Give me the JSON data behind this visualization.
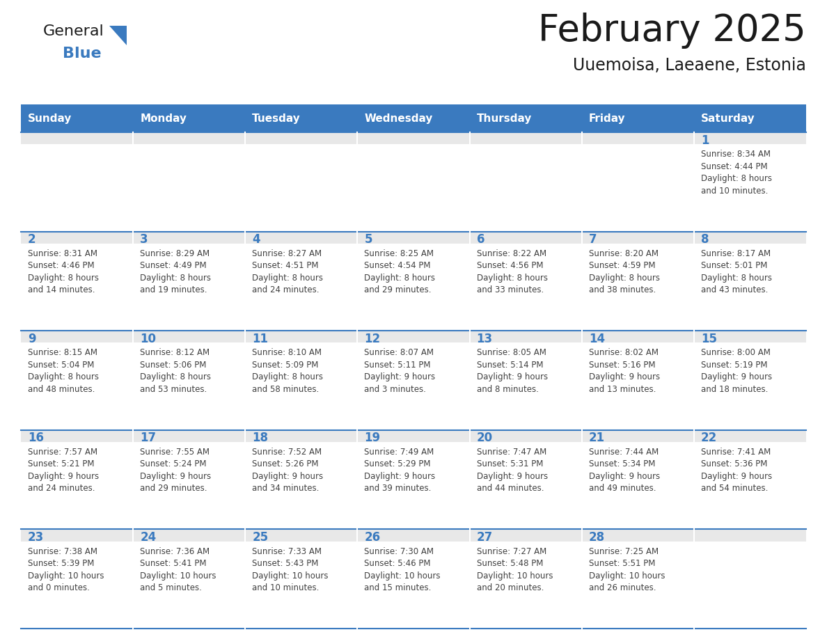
{
  "title": "February 2025",
  "subtitle": "Uuemoisa, Laeaene, Estonia",
  "header_color": "#3a7abf",
  "header_text_color": "#ffffff",
  "cell_bg_top_color": "#e8e8e8",
  "cell_bg_color": "#ffffff",
  "cell_border_color": "#3a7abf",
  "day_number_color": "#3a7abf",
  "text_color": "#404040",
  "days_of_week": [
    "Sunday",
    "Monday",
    "Tuesday",
    "Wednesday",
    "Thursday",
    "Friday",
    "Saturday"
  ],
  "weeks": [
    [
      {
        "day": null,
        "info": null
      },
      {
        "day": null,
        "info": null
      },
      {
        "day": null,
        "info": null
      },
      {
        "day": null,
        "info": null
      },
      {
        "day": null,
        "info": null
      },
      {
        "day": null,
        "info": null
      },
      {
        "day": 1,
        "info": "Sunrise: 8:34 AM\nSunset: 4:44 PM\nDaylight: 8 hours\nand 10 minutes."
      }
    ],
    [
      {
        "day": 2,
        "info": "Sunrise: 8:31 AM\nSunset: 4:46 PM\nDaylight: 8 hours\nand 14 minutes."
      },
      {
        "day": 3,
        "info": "Sunrise: 8:29 AM\nSunset: 4:49 PM\nDaylight: 8 hours\nand 19 minutes."
      },
      {
        "day": 4,
        "info": "Sunrise: 8:27 AM\nSunset: 4:51 PM\nDaylight: 8 hours\nand 24 minutes."
      },
      {
        "day": 5,
        "info": "Sunrise: 8:25 AM\nSunset: 4:54 PM\nDaylight: 8 hours\nand 29 minutes."
      },
      {
        "day": 6,
        "info": "Sunrise: 8:22 AM\nSunset: 4:56 PM\nDaylight: 8 hours\nand 33 minutes."
      },
      {
        "day": 7,
        "info": "Sunrise: 8:20 AM\nSunset: 4:59 PM\nDaylight: 8 hours\nand 38 minutes."
      },
      {
        "day": 8,
        "info": "Sunrise: 8:17 AM\nSunset: 5:01 PM\nDaylight: 8 hours\nand 43 minutes."
      }
    ],
    [
      {
        "day": 9,
        "info": "Sunrise: 8:15 AM\nSunset: 5:04 PM\nDaylight: 8 hours\nand 48 minutes."
      },
      {
        "day": 10,
        "info": "Sunrise: 8:12 AM\nSunset: 5:06 PM\nDaylight: 8 hours\nand 53 minutes."
      },
      {
        "day": 11,
        "info": "Sunrise: 8:10 AM\nSunset: 5:09 PM\nDaylight: 8 hours\nand 58 minutes."
      },
      {
        "day": 12,
        "info": "Sunrise: 8:07 AM\nSunset: 5:11 PM\nDaylight: 9 hours\nand 3 minutes."
      },
      {
        "day": 13,
        "info": "Sunrise: 8:05 AM\nSunset: 5:14 PM\nDaylight: 9 hours\nand 8 minutes."
      },
      {
        "day": 14,
        "info": "Sunrise: 8:02 AM\nSunset: 5:16 PM\nDaylight: 9 hours\nand 13 minutes."
      },
      {
        "day": 15,
        "info": "Sunrise: 8:00 AM\nSunset: 5:19 PM\nDaylight: 9 hours\nand 18 minutes."
      }
    ],
    [
      {
        "day": 16,
        "info": "Sunrise: 7:57 AM\nSunset: 5:21 PM\nDaylight: 9 hours\nand 24 minutes."
      },
      {
        "day": 17,
        "info": "Sunrise: 7:55 AM\nSunset: 5:24 PM\nDaylight: 9 hours\nand 29 minutes."
      },
      {
        "day": 18,
        "info": "Sunrise: 7:52 AM\nSunset: 5:26 PM\nDaylight: 9 hours\nand 34 minutes."
      },
      {
        "day": 19,
        "info": "Sunrise: 7:49 AM\nSunset: 5:29 PM\nDaylight: 9 hours\nand 39 minutes."
      },
      {
        "day": 20,
        "info": "Sunrise: 7:47 AM\nSunset: 5:31 PM\nDaylight: 9 hours\nand 44 minutes."
      },
      {
        "day": 21,
        "info": "Sunrise: 7:44 AM\nSunset: 5:34 PM\nDaylight: 9 hours\nand 49 minutes."
      },
      {
        "day": 22,
        "info": "Sunrise: 7:41 AM\nSunset: 5:36 PM\nDaylight: 9 hours\nand 54 minutes."
      }
    ],
    [
      {
        "day": 23,
        "info": "Sunrise: 7:38 AM\nSunset: 5:39 PM\nDaylight: 10 hours\nand 0 minutes."
      },
      {
        "day": 24,
        "info": "Sunrise: 7:36 AM\nSunset: 5:41 PM\nDaylight: 10 hours\nand 5 minutes."
      },
      {
        "day": 25,
        "info": "Sunrise: 7:33 AM\nSunset: 5:43 PM\nDaylight: 10 hours\nand 10 minutes."
      },
      {
        "day": 26,
        "info": "Sunrise: 7:30 AM\nSunset: 5:46 PM\nDaylight: 10 hours\nand 15 minutes."
      },
      {
        "day": 27,
        "info": "Sunrise: 7:27 AM\nSunset: 5:48 PM\nDaylight: 10 hours\nand 20 minutes."
      },
      {
        "day": 28,
        "info": "Sunrise: 7:25 AM\nSunset: 5:51 PM\nDaylight: 10 hours\nand 26 minutes."
      },
      {
        "day": null,
        "info": null
      }
    ]
  ],
  "logo_text_general": "General",
  "logo_text_blue": "Blue",
  "logo_color_general": "#1a1a1a",
  "logo_color_blue": "#3a7abf",
  "logo_triangle_color": "#3a7abf"
}
